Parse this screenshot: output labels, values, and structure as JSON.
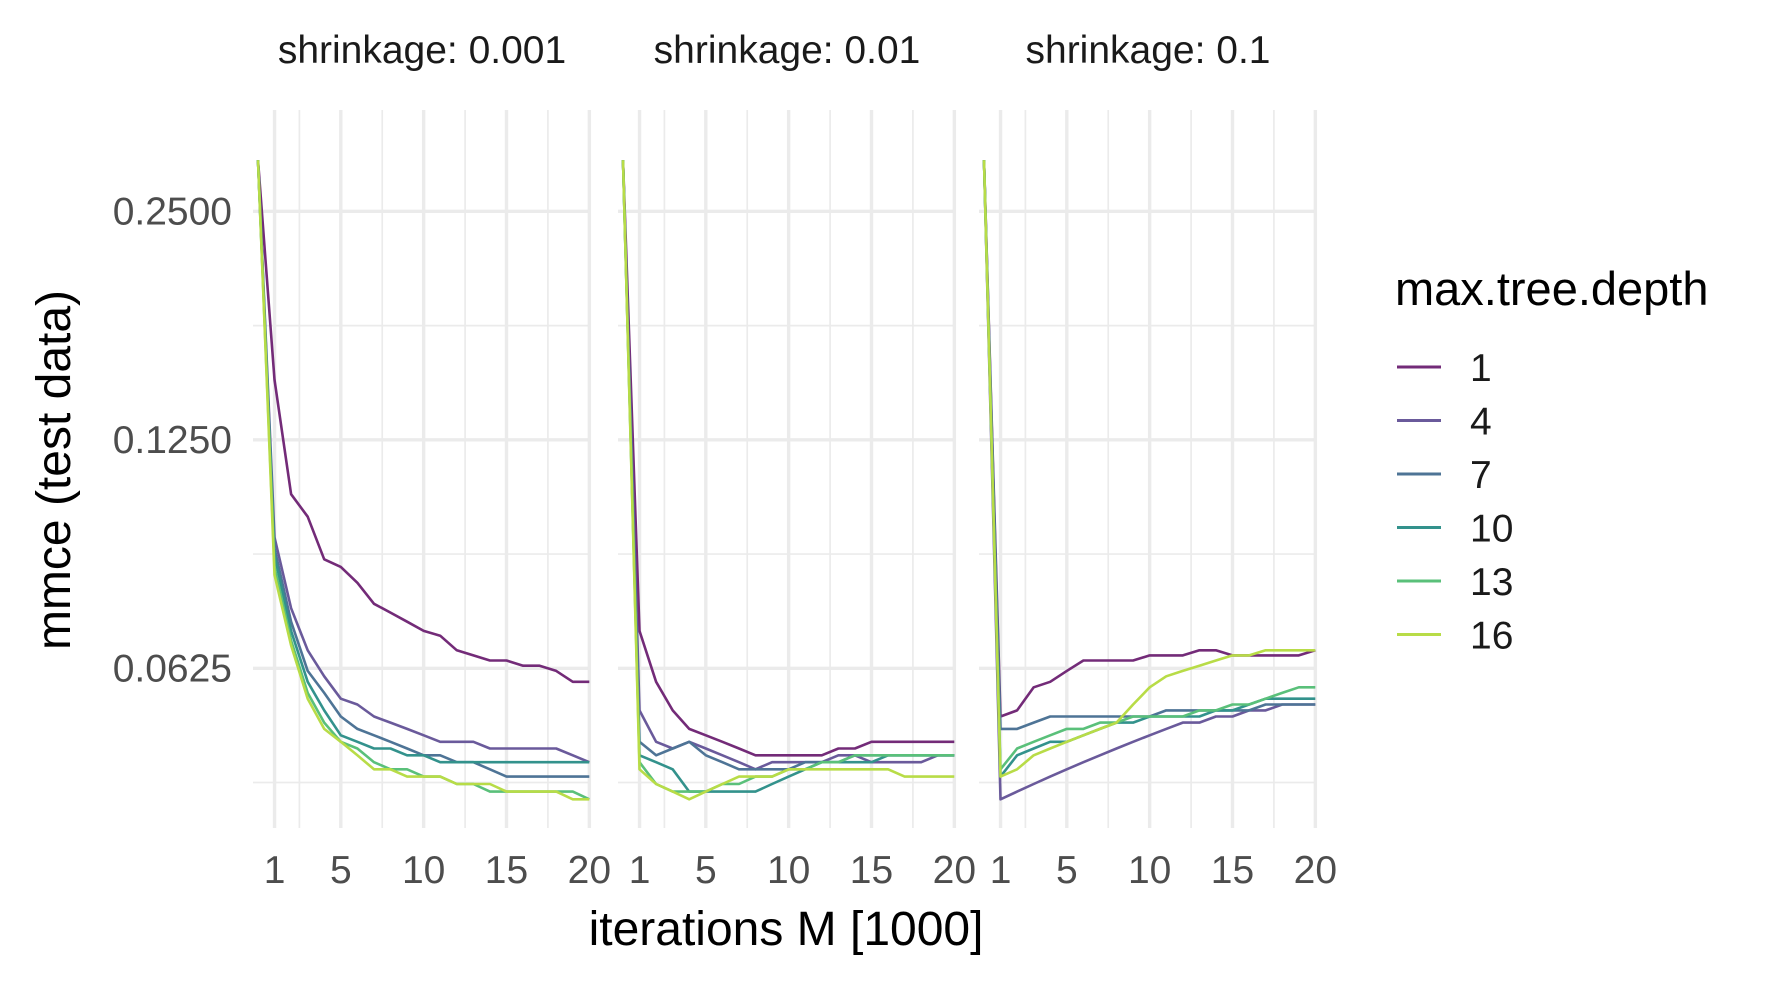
{
  "chart_data": {
    "type": "line",
    "xlabel": "iterations M [1000]",
    "ylabel": "mmce (test data)",
    "y_scale": "log2",
    "ylim": [
      0.0385,
      0.34
    ],
    "xlim": [
      -0.3,
      20.1
    ],
    "x_ticks": [
      1,
      5,
      10,
      15,
      20
    ],
    "y_ticks": [
      0.0625,
      0.125,
      0.25
    ],
    "y_tick_labels": [
      "0.0625",
      "0.1250",
      "0.2500"
    ],
    "grid": true,
    "legend": {
      "title": "max.tree.depth",
      "position": "right",
      "entries": [
        "1",
        "4",
        "7",
        "10",
        "13",
        "16"
      ]
    },
    "series_colors": {
      "1": "#732b78",
      "4": "#6a5a9b",
      "7": "#4e7496",
      "10": "#33928c",
      "13": "#5ac07a",
      "16": "#b8dc47"
    },
    "x": [
      0,
      1,
      2,
      3,
      4,
      5,
      6,
      7,
      8,
      9,
      10,
      11,
      12,
      13,
      14,
      15,
      16,
      17,
      18,
      19,
      20
    ],
    "panels": [
      {
        "label": "shrinkage: 0.001",
        "series": [
          {
            "name": "1",
            "values": [
              0.292,
              0.15,
              0.106,
              0.099,
              0.087,
              0.085,
              0.081,
              0.076,
              0.074,
              0.072,
              0.07,
              0.069,
              0.066,
              0.065,
              0.064,
              0.064,
              0.063,
              0.063,
              0.062,
              0.06,
              0.06
            ]
          },
          {
            "name": "4",
            "values": [
              0.292,
              0.093,
              0.075,
              0.066,
              0.061,
              0.057,
              0.056,
              0.054,
              0.053,
              0.052,
              0.051,
              0.05,
              0.05,
              0.05,
              0.049,
              0.049,
              0.049,
              0.049,
              0.049,
              0.048,
              0.047
            ]
          },
          {
            "name": "7",
            "values": [
              0.292,
              0.09,
              0.072,
              0.062,
              0.058,
              0.054,
              0.052,
              0.051,
              0.05,
              0.049,
              0.048,
              0.048,
              0.047,
              0.047,
              0.046,
              0.045,
              0.045,
              0.045,
              0.045,
              0.045,
              0.045
            ]
          },
          {
            "name": "10",
            "values": [
              0.292,
              0.088,
              0.07,
              0.06,
              0.055,
              0.051,
              0.05,
              0.049,
              0.049,
              0.048,
              0.048,
              0.047,
              0.047,
              0.047,
              0.047,
              0.047,
              0.047,
              0.047,
              0.047,
              0.047,
              0.047
            ]
          },
          {
            "name": "13",
            "values": [
              0.292,
              0.085,
              0.068,
              0.058,
              0.053,
              0.05,
              0.049,
              0.047,
              0.046,
              0.046,
              0.045,
              0.045,
              0.044,
              0.044,
              0.043,
              0.043,
              0.043,
              0.043,
              0.043,
              0.043,
              0.042
            ]
          },
          {
            "name": "16",
            "values": [
              0.292,
              0.083,
              0.067,
              0.057,
              0.052,
              0.05,
              0.048,
              0.046,
              0.046,
              0.045,
              0.045,
              0.045,
              0.044,
              0.044,
              0.044,
              0.043,
              0.043,
              0.043,
              0.043,
              0.042,
              0.042
            ]
          }
        ]
      },
      {
        "label": "shrinkage: 0.01",
        "series": [
          {
            "name": "1",
            "values": [
              0.292,
              0.07,
              0.06,
              0.055,
              0.052,
              0.051,
              0.05,
              0.049,
              0.048,
              0.048,
              0.048,
              0.048,
              0.048,
              0.049,
              0.049,
              0.05,
              0.05,
              0.05,
              0.05,
              0.05,
              0.05
            ]
          },
          {
            "name": "4",
            "values": [
              0.292,
              0.055,
              0.05,
              0.049,
              0.05,
              0.049,
              0.048,
              0.047,
              0.046,
              0.047,
              0.047,
              0.047,
              0.047,
              0.048,
              0.048,
              0.047,
              0.047,
              0.047,
              0.047,
              0.048,
              0.048
            ]
          },
          {
            "name": "7",
            "values": [
              0.292,
              0.05,
              0.048,
              0.049,
              0.05,
              0.048,
              0.047,
              0.046,
              0.046,
              0.046,
              0.046,
              0.047,
              0.047,
              0.047,
              0.048,
              0.048,
              0.048,
              0.048,
              0.048,
              0.048,
              0.048
            ]
          },
          {
            "name": "10",
            "values": [
              0.292,
              0.048,
              0.047,
              0.046,
              0.043,
              0.043,
              0.043,
              0.043,
              0.043,
              0.044,
              0.045,
              0.046,
              0.047,
              0.047,
              0.047,
              0.047,
              0.048,
              0.048,
              0.048,
              0.048,
              0.048
            ]
          },
          {
            "name": "13",
            "values": [
              0.292,
              0.047,
              0.044,
              0.043,
              0.043,
              0.043,
              0.044,
              0.044,
              0.045,
              0.045,
              0.046,
              0.046,
              0.047,
              0.047,
              0.048,
              0.048,
              0.048,
              0.048,
              0.048,
              0.048,
              0.048
            ]
          },
          {
            "name": "16",
            "values": [
              0.292,
              0.046,
              0.044,
              0.043,
              0.042,
              0.043,
              0.044,
              0.045,
              0.045,
              0.045,
              0.046,
              0.046,
              0.046,
              0.046,
              0.046,
              0.046,
              0.046,
              0.045,
              0.045,
              0.045,
              0.045
            ]
          }
        ]
      },
      {
        "label": "shrinkage: 0.1",
        "series": [
          {
            "name": "1",
            "values": [
              0.292,
              0.054,
              0.055,
              0.059,
              0.06,
              0.062,
              0.064,
              0.064,
              0.064,
              0.064,
              0.065,
              0.065,
              0.065,
              0.066,
              0.066,
              0.065,
              0.065,
              0.065,
              0.065,
              0.065,
              0.066
            ]
          },
          {
            "name": "4",
            "values": [
              0.292,
              0.042,
              0.043,
              0.044,
              0.045,
              0.046,
              0.047,
              0.048,
              0.049,
              0.05,
              0.051,
              0.052,
              0.053,
              0.053,
              0.054,
              0.054,
              0.055,
              0.055,
              0.056,
              0.056,
              0.056
            ]
          },
          {
            "name": "7",
            "values": [
              0.292,
              0.052,
              0.052,
              0.053,
              0.054,
              0.054,
              0.054,
              0.054,
              0.054,
              0.054,
              0.054,
              0.055,
              0.055,
              0.055,
              0.055,
              0.055,
              0.055,
              0.056,
              0.056,
              0.056,
              0.056
            ]
          },
          {
            "name": "10",
            "values": [
              0.292,
              0.045,
              0.048,
              0.049,
              0.05,
              0.05,
              0.051,
              0.052,
              0.053,
              0.053,
              0.054,
              0.054,
              0.054,
              0.054,
              0.055,
              0.055,
              0.056,
              0.057,
              0.057,
              0.057,
              0.057
            ]
          },
          {
            "name": "13",
            "values": [
              0.292,
              0.046,
              0.049,
              0.05,
              0.051,
              0.052,
              0.052,
              0.053,
              0.053,
              0.054,
              0.054,
              0.054,
              0.054,
              0.055,
              0.055,
              0.056,
              0.056,
              0.057,
              0.058,
              0.059,
              0.059
            ]
          },
          {
            "name": "16",
            "values": [
              0.292,
              0.045,
              0.046,
              0.048,
              0.049,
              0.05,
              0.051,
              0.052,
              0.053,
              0.056,
              0.059,
              0.061,
              0.062,
              0.063,
              0.064,
              0.065,
              0.065,
              0.066,
              0.066,
              0.066,
              0.066
            ]
          }
        ]
      }
    ]
  }
}
